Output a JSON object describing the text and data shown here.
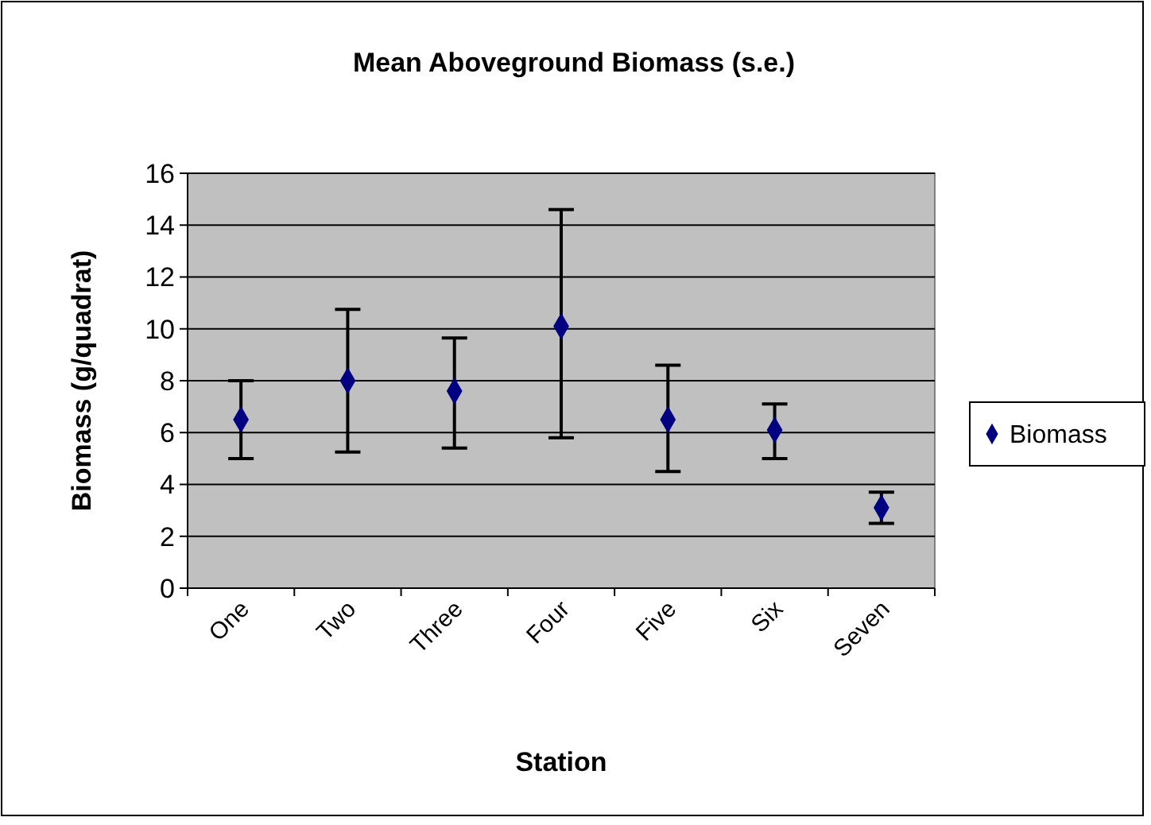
{
  "chart_data": {
    "type": "scatter",
    "title": "Mean Aboveground Biomass (s.e.)",
    "xlabel": "Station",
    "ylabel": "Biomass (g/quadrat)",
    "categories": [
      "One",
      "Two",
      "Three",
      "Four",
      "Five",
      "Six",
      "Seven"
    ],
    "series": [
      {
        "name": "Biomass",
        "color": "#000080",
        "values": [
          6.5,
          8.0,
          7.6,
          10.1,
          6.5,
          6.1,
          3.1
        ],
        "errors": [
          [
            5.0,
            8.0
          ],
          [
            5.25,
            10.75
          ],
          [
            5.4,
            9.65
          ],
          [
            5.8,
            14.6
          ],
          [
            4.5,
            8.6
          ],
          [
            5.0,
            7.1
          ],
          [
            2.5,
            3.7
          ]
        ]
      }
    ],
    "ylim": [
      0,
      16
    ],
    "yticks": [
      0,
      2,
      4,
      6,
      8,
      10,
      12,
      14,
      16
    ],
    "grid": "y",
    "legend": "right",
    "marker": "diamond"
  }
}
